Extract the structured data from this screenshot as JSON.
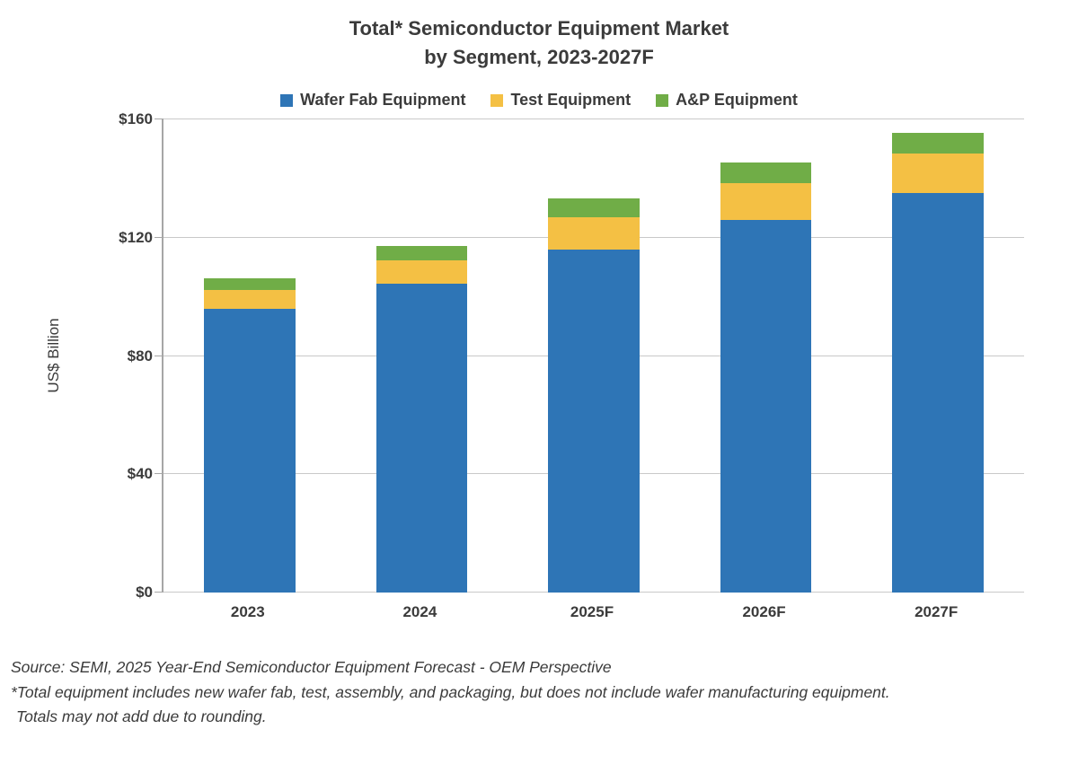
{
  "chart_data": {
    "type": "bar",
    "stacked": true,
    "title_line1": "Total* Semiconductor Equipment Market",
    "title_line2": "by Segment, 2023-2027F",
    "ylabel": "US$ Billion",
    "ylim": [
      0,
      160
    ],
    "grid": "horizontal-only",
    "legend_position": "top",
    "categories": [
      "2023",
      "2024",
      "2025F",
      "2026F",
      "2027F"
    ],
    "series": [
      {
        "key": "wafer-fab",
        "name": "Wafer Fab Equipment",
        "color": "#2e75b6",
        "values": [
          96,
          104.5,
          116,
          126,
          135
        ]
      },
      {
        "key": "test",
        "name": "Test Equipment",
        "color": "#f4c044",
        "values": [
          6.3,
          7.8,
          11,
          12.5,
          13.5
        ]
      },
      {
        "key": "ap",
        "name": "A&P Equipment",
        "color": "#70ad47",
        "values": [
          4,
          4.8,
          6.3,
          7,
          7
        ]
      }
    ],
    "yticks": [
      {
        "value": 0,
        "label": "$0"
      },
      {
        "value": 40,
        "label": "$40"
      },
      {
        "value": 80,
        "label": "$80"
      },
      {
        "value": 120,
        "label": "$120"
      },
      {
        "value": 160,
        "label": "$160"
      }
    ]
  },
  "footer": {
    "source": "Source: SEMI, 2025 Year-End Semiconductor Equipment Forecast - OEM Perspective",
    "note1": "*Total equipment includes new wafer fab, test, assembly, and packaging, but does not include wafer manufacturing equipment.",
    "note2": "Totals may not add due to rounding."
  }
}
